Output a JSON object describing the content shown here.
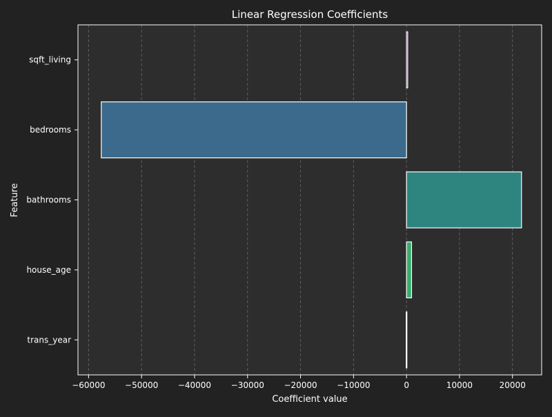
{
  "chart_data": {
    "type": "bar",
    "orientation": "horizontal",
    "title": "Linear Regression Coefficients",
    "xlabel": "Coefficient value",
    "ylabel": "Feature",
    "categories": [
      "sqft_living",
      "bedrooms",
      "bathrooms",
      "house_age",
      "trans_year"
    ],
    "values": [
      220,
      -57600,
      21700,
      950,
      -60
    ],
    "bar_colors": [
      "#440154",
      "#3b6a8c",
      "#2e8580",
      "#3aae6e",
      "#fde725"
    ],
    "xlim": [
      -62000,
      25500
    ],
    "xticks": [
      -60000,
      -50000,
      -40000,
      -30000,
      -20000,
      -10000,
      0,
      10000,
      20000
    ],
    "xtick_labels": [
      "−60000",
      "−50000",
      "−40000",
      "−30000",
      "−20000",
      "−10000",
      "0",
      "10000",
      "20000"
    ],
    "grid": "x dashed",
    "colors": {
      "figure_background": "#222222",
      "plot_background": "#2d2d2d",
      "bar_edge": "#ffffff",
      "grid": "#6a6a6a",
      "text": "#ffffff"
    }
  }
}
